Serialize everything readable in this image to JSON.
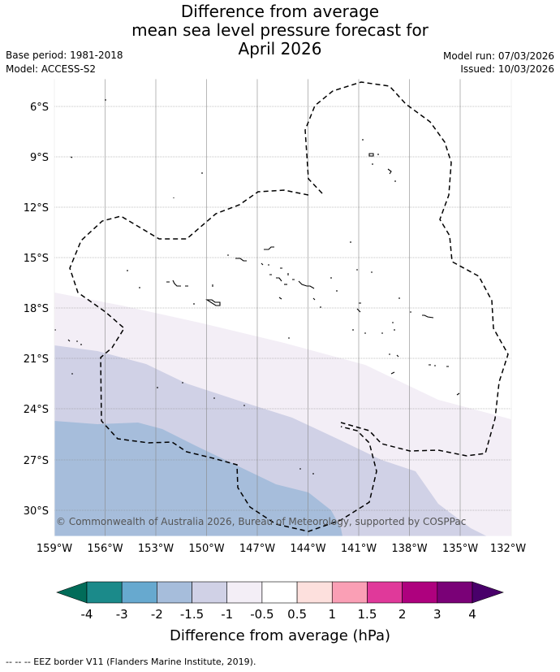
{
  "header": {
    "title_line1": "Difference from average",
    "title_line2": "mean sea level pressure forecast for",
    "title_line3": "April 2026",
    "base_period": "Base period: 1981-2018",
    "model": "Model: ACCESS-S2",
    "model_run": "Model run: 07/03/2026",
    "issued": "Issued: 10/03/2026"
  },
  "map": {
    "lat_labels": [
      "6°S",
      "9°S",
      "12°S",
      "15°S",
      "18°S",
      "21°S",
      "24°S",
      "27°S",
      "30°S"
    ],
    "lon_labels": [
      "159°W",
      "156°W",
      "153°W",
      "150°W",
      "147°W",
      "144°W",
      "141°W",
      "138°W",
      "135°W",
      "132°W"
    ],
    "copyright": "© Commonwealth of Australia 2026, Bureau of Meteorology, supported by COSPPac",
    "colors": {
      "band_neg_0_5_to_neg_1": "#f3eef6",
      "band_neg_1_to_neg_1_5": "#d0d1e6",
      "band_neg_1_5_to_neg_2": "#a6bddb",
      "grid": "#888888",
      "eez_border": "#000000"
    }
  },
  "legend": {
    "title": "Difference from average (hPa)",
    "tick_labels": [
      "-4",
      "-3",
      "-2",
      "-1.5",
      "-1",
      "-0.5",
      "0.5",
      "1",
      "1.5",
      "2",
      "3",
      "4"
    ],
    "colors": [
      "#1b8a8a",
      "#67a9cf",
      "#a6bddb",
      "#d0d1e6",
      "#f3eef6",
      "#ffffff",
      "#fde0dd",
      "#fa9fb5",
      "#e0399a",
      "#ae017e",
      "#7a0177"
    ],
    "under_color": "#016c59",
    "over_color": "#49006a"
  },
  "footer": {
    "eez_note": "--  --  -- EEZ border V11 (Flanders Marine Institute, 2019)."
  }
}
